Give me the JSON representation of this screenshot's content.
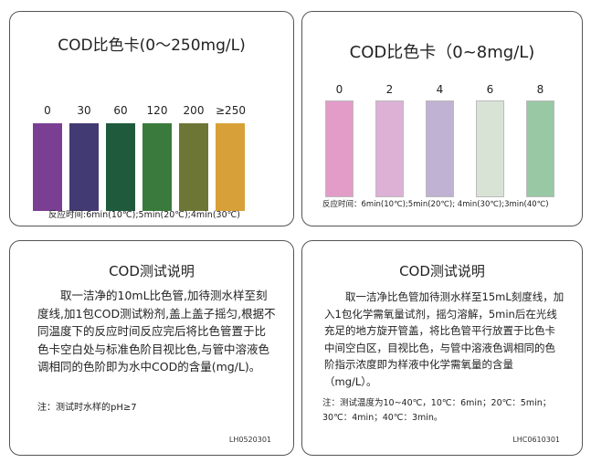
{
  "card_high": {
    "title": "COD比色卡(0～250mg/L)",
    "swatches": [
      {
        "label": "0",
        "color": "#7a3f93"
      },
      {
        "label": "30",
        "color": "#423a72"
      },
      {
        "label": "60",
        "color": "#1f5a3c"
      },
      {
        "label": "120",
        "color": "#3a7a3c"
      },
      {
        "label": "200",
        "color": "#6e7636"
      },
      {
        "label": "≥250",
        "color": "#d8a038"
      }
    ],
    "reaction_time": "反应时间:6min(10℃);5min(20℃);4min(30℃)"
  },
  "card_low": {
    "title": "COD比色卡（0~8mg/L)",
    "swatches": [
      {
        "label": "0",
        "color": "#e39cc8"
      },
      {
        "label": "2",
        "color": "#ddb0d6"
      },
      {
        "label": "4",
        "color": "#c0b2d2"
      },
      {
        "label": "6",
        "color": "#d8e3d6"
      },
      {
        "label": "8",
        "color": "#98c8a4"
      }
    ],
    "reaction_time": "反应时间：6min(10℃);5min(20℃); 4min(30℃);3min(40℃)"
  },
  "instr_left": {
    "title": "COD测试说明",
    "body": "取一洁净的10mL比色管,加待测水样至刻度线,加1包COD测试粉剂,盖上盖子摇匀,根据不同温度下的反应时间反应完后将比色管置于比色卡空白处与标准色阶目视比色,与管中溶液色调相同的色阶即为水中COD的含量(mg/L)。",
    "note": "注：测试时水样的pH≥7",
    "code": "LH0520301"
  },
  "instr_right": {
    "title": "COD测试说明",
    "body": "取一洁净比色管加待测水样至15mL刻度线，加入1包化学需氧量试剂，摇匀溶解，5min后在光线充足的地方旋开管盖，将比色管平行放置于比色卡中间空白区，目视比色，与管中溶液色调相同的色阶指示浓度即为样液中化学需氧量的含量（mg/L）。",
    "note": "注：测试温度为10~40℃，10℃：6min；20℃：5min；30℃：4min；40℃：3min。",
    "code": "LHC0610301"
  }
}
